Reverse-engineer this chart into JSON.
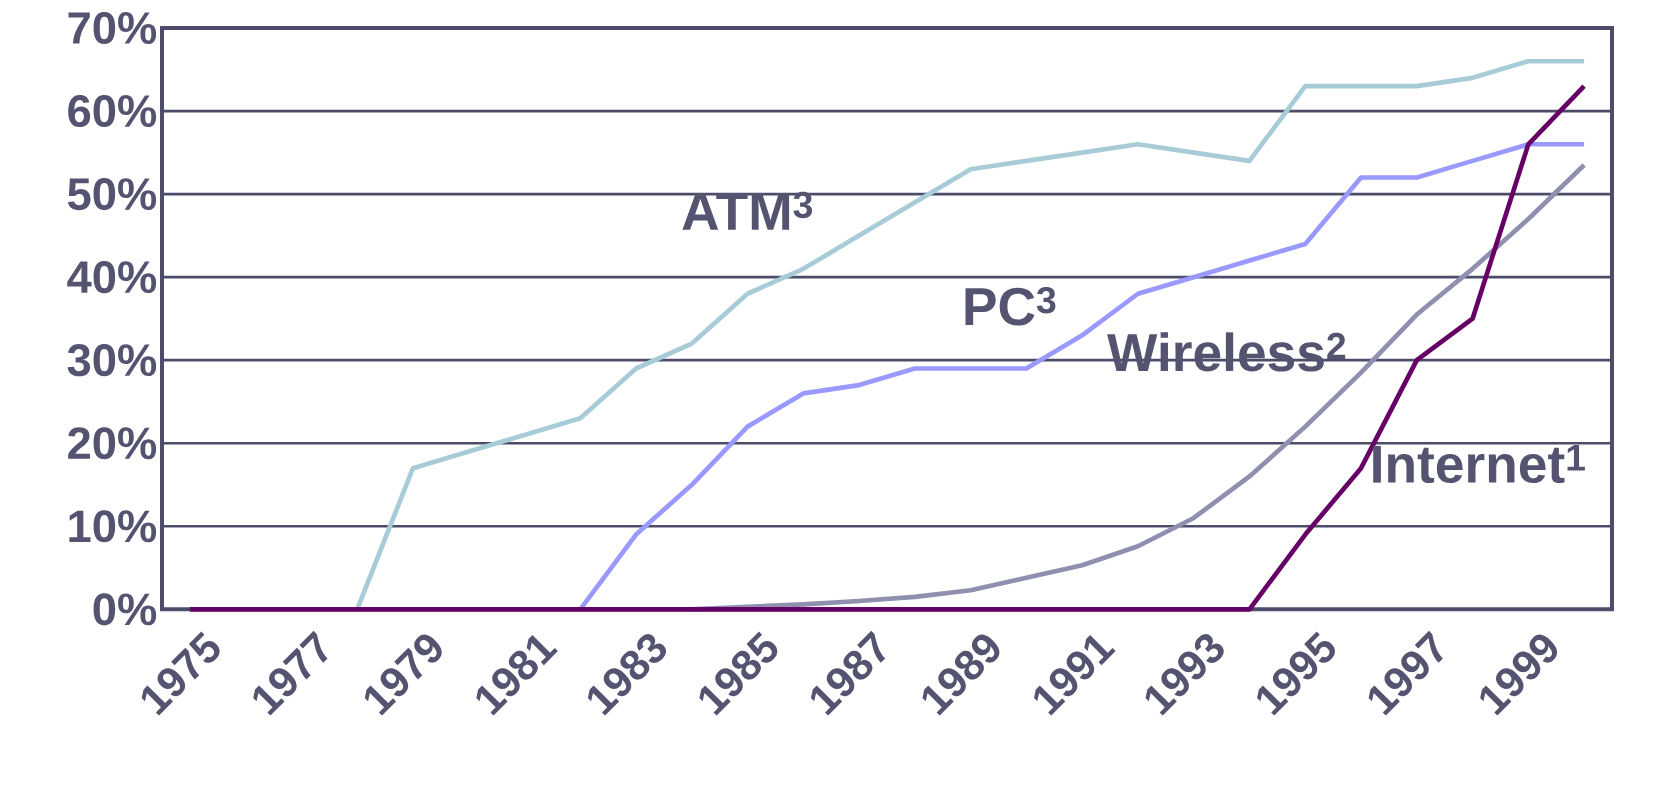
{
  "chart_data": {
    "type": "line",
    "categories": [
      "1975",
      null,
      "1977",
      null,
      "1979",
      null,
      "1981",
      null,
      "1983",
      null,
      "1985",
      null,
      "1987",
      null,
      "1989",
      null,
      "1991",
      null,
      "1993",
      null,
      "1995",
      null,
      "1997",
      null,
      "1999",
      null
    ],
    "series": [
      {
        "name": "ATM$^{3}$",
        "color": "#a8ccd7",
        "values": [
          null,
          null,
          null,
          0,
          17,
          19,
          21,
          23,
          29,
          32,
          38,
          41,
          45,
          49,
          53,
          54,
          55,
          56,
          55,
          54,
          63,
          63,
          63,
          64,
          66,
          66
        ]
      },
      {
        "name": "PC$^{3}$",
        "color": "#9999ff",
        "values": [
          null,
          null,
          null,
          null,
          null,
          null,
          null,
          0,
          9,
          15,
          22,
          26,
          27,
          29,
          29,
          29,
          33,
          38,
          40,
          42,
          44,
          52,
          52,
          54,
          56,
          56
        ]
      },
      {
        "name": "Wireless$^{2}$",
        "color": "#8f8fb0",
        "values": [
          null,
          null,
          null,
          null,
          null,
          null,
          null,
          null,
          null,
          0,
          0.3,
          0.6,
          1,
          1.5,
          2.3,
          3.8,
          5.3,
          7.6,
          11,
          16,
          22,
          28.5,
          35.5,
          41,
          47,
          53.5
        ]
      },
      {
        "name": "Internet$^{1}$",
        "color": "#660066",
        "values": [
          0,
          0,
          0,
          0,
          0,
          0,
          0,
          0,
          0,
          0,
          0,
          0,
          0,
          0,
          0,
          0,
          0,
          0,
          0,
          0,
          9,
          17,
          30,
          35,
          56,
          63
        ]
      }
    ],
    "ylim": [
      0,
      70
    ],
    "yticks": [
      {
        "value": 0,
        "label": "0%"
      },
      {
        "value": 10,
        "label": "10%"
      },
      {
        "value": 20,
        "label": "20%"
      },
      {
        "value": 30,
        "label": "30%"
      },
      {
        "value": 40,
        "label": "40%"
      },
      {
        "value": 50,
        "label": "50%"
      },
      {
        "value": 60,
        "label": "60%"
      },
      {
        "value": 70,
        "label": "70%"
      }
    ],
    "grid": "y",
    "legend": false,
    "marker": "none",
    "line_style": "solid"
  }
}
